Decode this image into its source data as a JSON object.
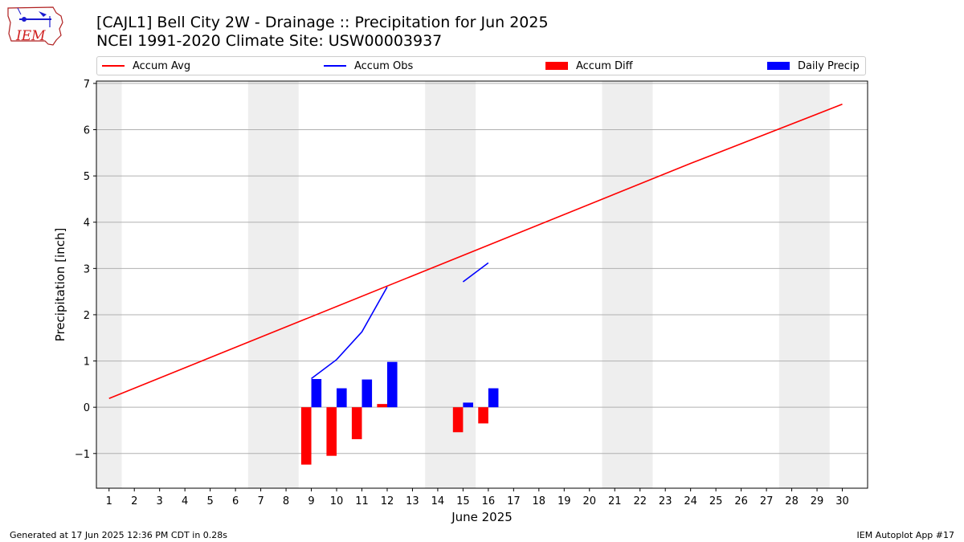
{
  "header": {
    "title_line1": "[CAJL1] Bell City 2W - Drainage :: Precipitation for Jun 2025",
    "title_line2": "NCEI 1991-2020 Climate Site: USW00003937"
  },
  "logo": {
    "text": "IEM"
  },
  "legend": {
    "items": [
      {
        "label": "Accum Avg",
        "color": "#ff0000",
        "kind": "line"
      },
      {
        "label": "Accum Obs",
        "color": "#0000ff",
        "kind": "line"
      },
      {
        "label": "Accum Diff",
        "color": "#ff0000",
        "kind": "patch"
      },
      {
        "label": "Daily Precip",
        "color": "#0000ff",
        "kind": "patch"
      }
    ]
  },
  "footer": {
    "left": "Generated at 17 Jun 2025 12:36 PM CDT in 0.28s",
    "right": "IEM Autoplot App #17"
  },
  "chart_data": {
    "type": "bar",
    "xlabel": "June 2025",
    "ylabel": "Precipitation [inch]",
    "x": [
      1,
      2,
      3,
      4,
      5,
      6,
      7,
      8,
      9,
      10,
      11,
      12,
      13,
      14,
      15,
      16,
      17,
      18,
      19,
      20,
      21,
      22,
      23,
      24,
      25,
      26,
      27,
      28,
      29,
      30
    ],
    "xlim": [
      0.5,
      31
    ],
    "ylim": [
      -1.75,
      7.05
    ],
    "yticks": [
      -1,
      0,
      1,
      2,
      3,
      4,
      5,
      6,
      7
    ],
    "ytick_labels": [
      "−1",
      "0",
      "1",
      "2",
      "3",
      "4",
      "5",
      "6",
      "7"
    ],
    "grid": "horizontal",
    "weekend_shading": [
      [
        0.5,
        1.5
      ],
      [
        6.5,
        8.5
      ],
      [
        13.5,
        15.5
      ],
      [
        20.5,
        22.5
      ],
      [
        27.5,
        29.5
      ]
    ],
    "accum_avg": {
      "name": "Accum Avg",
      "color": "#ff0000",
      "x": [
        1,
        24,
        30
      ],
      "y": [
        0.19,
        5.27,
        6.55
      ]
    },
    "accum_obs": {
      "name": "Accum Obs",
      "color": "#0000ff",
      "segments": [
        {
          "x": [
            9,
            10,
            11,
            12
          ],
          "y": [
            0.62,
            1.03,
            1.63,
            2.6
          ]
        },
        {
          "x": [
            15,
            16
          ],
          "y": [
            2.71,
            3.12
          ]
        }
      ]
    },
    "accum_diff": {
      "name": "Accum Diff",
      "color": "#ff0000",
      "x": [
        9,
        10,
        11,
        12,
        15,
        16
      ],
      "values": [
        -1.24,
        -1.05,
        -0.69,
        0.07,
        -0.54,
        -0.35
      ]
    },
    "daily_precip": {
      "name": "Daily Precip",
      "color": "#0000ff",
      "x": [
        9,
        10,
        11,
        12,
        15,
        16
      ],
      "values": [
        0.61,
        0.41,
        0.6,
        0.98,
        0.1,
        0.41
      ]
    }
  }
}
